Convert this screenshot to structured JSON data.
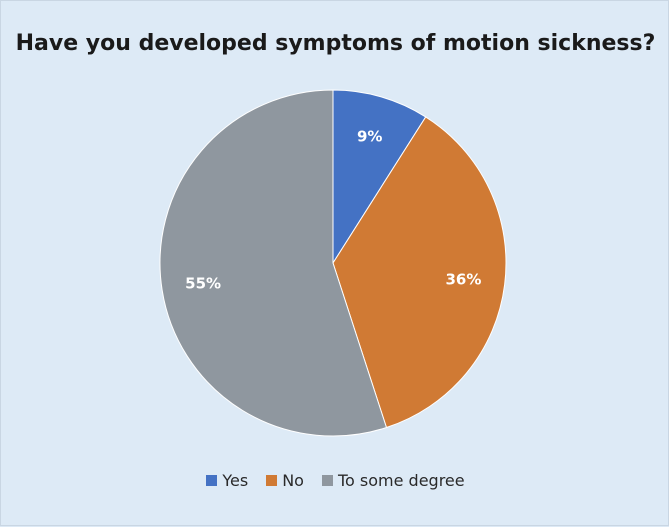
{
  "chart_data": {
    "type": "pie",
    "title": "Have you developed symptoms of motion sickness?",
    "categories": [
      "Yes",
      "No",
      "To some degree"
    ],
    "values": [
      9,
      36,
      55
    ],
    "data_labels": [
      "9%",
      "36%",
      "55%"
    ],
    "colors": [
      "#4472c4",
      "#d07a34",
      "#8f979f"
    ],
    "legend_position": "bottom"
  }
}
